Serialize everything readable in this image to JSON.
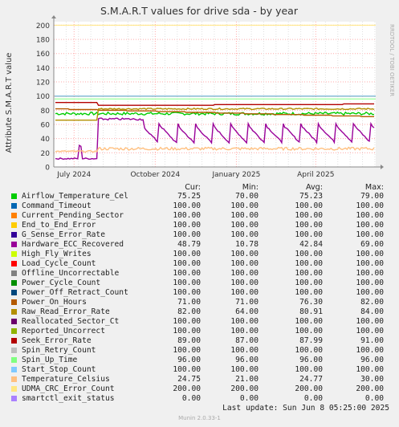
{
  "chart_data": {
    "type": "line",
    "title": "S.M.A.R.T values for drive sda - by year",
    "ylabel": "Attribute S.M.A.R.T value",
    "ylim": [
      0,
      205
    ],
    "yticks": [
      0,
      20,
      40,
      60,
      80,
      100,
      120,
      140,
      160,
      180,
      200
    ],
    "xlim": [
      "2024-06-08",
      "2025-06-08"
    ],
    "xticks": [
      {
        "label": "July 2024",
        "date": "2024-07-01"
      },
      {
        "label": "October 2024",
        "date": "2024-10-01"
      },
      {
        "label": "January 2025",
        "date": "2025-01-01"
      },
      {
        "label": "April 2025",
        "date": "2025-04-01"
      }
    ],
    "grid": true,
    "legend_placement": "bottom",
    "columns": [
      "Cur:",
      "Min:",
      "Avg:",
      "Max:"
    ],
    "series": [
      {
        "name": "Airflow_Temperature_Cel",
        "color": "#00cc00",
        "cur": "75.25",
        "min": "70.00",
        "avg": "75.23",
        "max": "79.00"
      },
      {
        "name": "Command_Timeout",
        "color": "#0066b3",
        "cur": "100.00",
        "min": "100.00",
        "avg": "100.00",
        "max": "100.00"
      },
      {
        "name": "Current_Pending_Sector",
        "color": "#ff8000",
        "cur": "100.00",
        "min": "100.00",
        "avg": "100.00",
        "max": "100.00"
      },
      {
        "name": "End_to_End_Error",
        "color": "#ffcc00",
        "cur": "100.00",
        "min": "100.00",
        "avg": "100.00",
        "max": "100.00"
      },
      {
        "name": "G_Sense_Error_Rate",
        "color": "#330099",
        "cur": "100.00",
        "min": "100.00",
        "avg": "100.00",
        "max": "100.00"
      },
      {
        "name": "Hardware_ECC_Recovered",
        "color": "#990099",
        "cur": "48.79",
        "min": "10.78",
        "avg": "42.84",
        "max": "69.00"
      },
      {
        "name": "High_Fly_Writes",
        "color": "#ccff00",
        "cur": "100.00",
        "min": "100.00",
        "avg": "100.00",
        "max": "100.00"
      },
      {
        "name": "Load_Cycle_Count",
        "color": "#ff0000",
        "cur": "100.00",
        "min": "100.00",
        "avg": "100.00",
        "max": "100.00"
      },
      {
        "name": "Offline_Uncorrectable",
        "color": "#808080",
        "cur": "100.00",
        "min": "100.00",
        "avg": "100.00",
        "max": "100.00"
      },
      {
        "name": "Power_Cycle_Count",
        "color": "#008f00",
        "cur": "100.00",
        "min": "100.00",
        "avg": "100.00",
        "max": "100.00"
      },
      {
        "name": "Power_Off_Retract_Count",
        "color": "#00487d",
        "cur": "100.00",
        "min": "100.00",
        "avg": "100.00",
        "max": "100.00"
      },
      {
        "name": "Power_On_Hours",
        "color": "#b35a00",
        "cur": "71.00",
        "min": "71.00",
        "avg": "76.30",
        "max": "82.00"
      },
      {
        "name": "Raw_Read_Error_Rate",
        "color": "#b38f00",
        "cur": "82.00",
        "min": "64.00",
        "avg": "80.91",
        "max": "84.00"
      },
      {
        "name": "Reallocated_Sector_Ct",
        "color": "#6b006b",
        "cur": "100.00",
        "min": "100.00",
        "avg": "100.00",
        "max": "100.00"
      },
      {
        "name": "Reported_Uncorrect",
        "color": "#8fb300",
        "cur": "100.00",
        "min": "100.00",
        "avg": "100.00",
        "max": "100.00"
      },
      {
        "name": "Seek_Error_Rate",
        "color": "#b30000",
        "cur": "89.00",
        "min": "87.00",
        "avg": "87.99",
        "max": "91.00"
      },
      {
        "name": "Spin_Retry_Count",
        "color": "#bebebe",
        "cur": "100.00",
        "min": "100.00",
        "avg": "100.00",
        "max": "100.00"
      },
      {
        "name": "Spin_Up_Time",
        "color": "#80ff80",
        "cur": "96.00",
        "min": "96.00",
        "avg": "96.00",
        "max": "96.00"
      },
      {
        "name": "Start_Stop_Count",
        "color": "#80c9ff",
        "cur": "100.00",
        "min": "100.00",
        "avg": "100.00",
        "max": "100.00"
      },
      {
        "name": "Temperature_Celsius",
        "color": "#ffc080",
        "cur": "24.75",
        "min": "21.00",
        "avg": "24.77",
        "max": "30.00"
      },
      {
        "name": "UDMA_CRC_Error_Count",
        "color": "#ffe680",
        "cur": "200.00",
        "min": "200.00",
        "avg": "200.00",
        "max": "200.00"
      },
      {
        "name": "smartctl_exit_status",
        "color": "#aa80ff",
        "cur": "0.00",
        "min": "0.00",
        "avg": "0.00",
        "max": "0.00"
      }
    ]
  },
  "last_update": "Last update:  Sun Jun  8 05:25:00 2025",
  "footer": "Munin 2.0.33-1",
  "side_text": "RRDTOOL / TOBI OETIKER"
}
